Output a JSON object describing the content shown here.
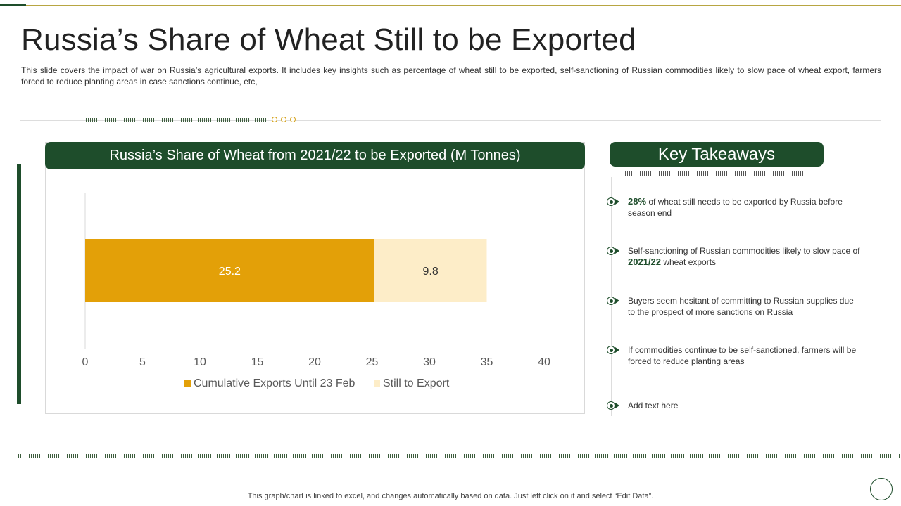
{
  "title": "Russia’s Share of Wheat Still to be Exported",
  "subtitle": "This slide covers the impact of war on Russia’s agricultural exports. It includes key insights such as percentage of wheat still to be exported, self-sanctioning of Russian commodities likely to slow pace of wheat export, farmers forced to reduce planting areas in case sanctions continue, etc,",
  "chart_header": "Russia’s Share of Wheat from 2021/22 to be Exported (M Tonnes)",
  "chart_data": {
    "type": "bar",
    "orientation": "horizontal",
    "stacked": true,
    "title": "Russia’s Share of Wheat from 2021/22 to be Exported (M Tonnes)",
    "categories": [
      ""
    ],
    "series": [
      {
        "name": "Cumulative Exports Until 23 Feb",
        "values": [
          25.2
        ],
        "color": "#e3a008",
        "label_color": "#ffffff"
      },
      {
        "name": "Still to Export",
        "values": [
          9.8
        ],
        "color": "#fdedc8",
        "label_color": "#333333"
      }
    ],
    "xlim": [
      0,
      40
    ],
    "xticks": [
      "0",
      "5",
      "10",
      "15",
      "20",
      "25",
      "30",
      "35",
      "40"
    ],
    "data_labels": [
      "25.2",
      "9.8"
    ],
    "legend_position": "bottom",
    "xlabel": "",
    "ylabel": ""
  },
  "takeaways": {
    "header": "Key Takeaways",
    "items": [
      {
        "bold": "28%",
        "text": " of wheat still needs to be exported by Russia before season end"
      },
      {
        "pre": "Self-sanctioning of Russian commodities likely to slow pace of ",
        "bold": "2021/22",
        "post": " wheat exports"
      },
      {
        "text": "Buyers seem hesitant of committing to Russian supplies due to the prospect of more sanctions on Russia"
      },
      {
        "text": "If commodities continue to be self-sanctioned, farmers will be forced to reduce planting areas"
      },
      {
        "text": "Add text here"
      }
    ]
  },
  "footer": "This graph/chart is linked to excel,  and changes automatically based on data. Just left click on it and select “Edit Data”.",
  "colors": {
    "brand_green": "#1e4d2b",
    "accent_gold": "#d4a017"
  }
}
